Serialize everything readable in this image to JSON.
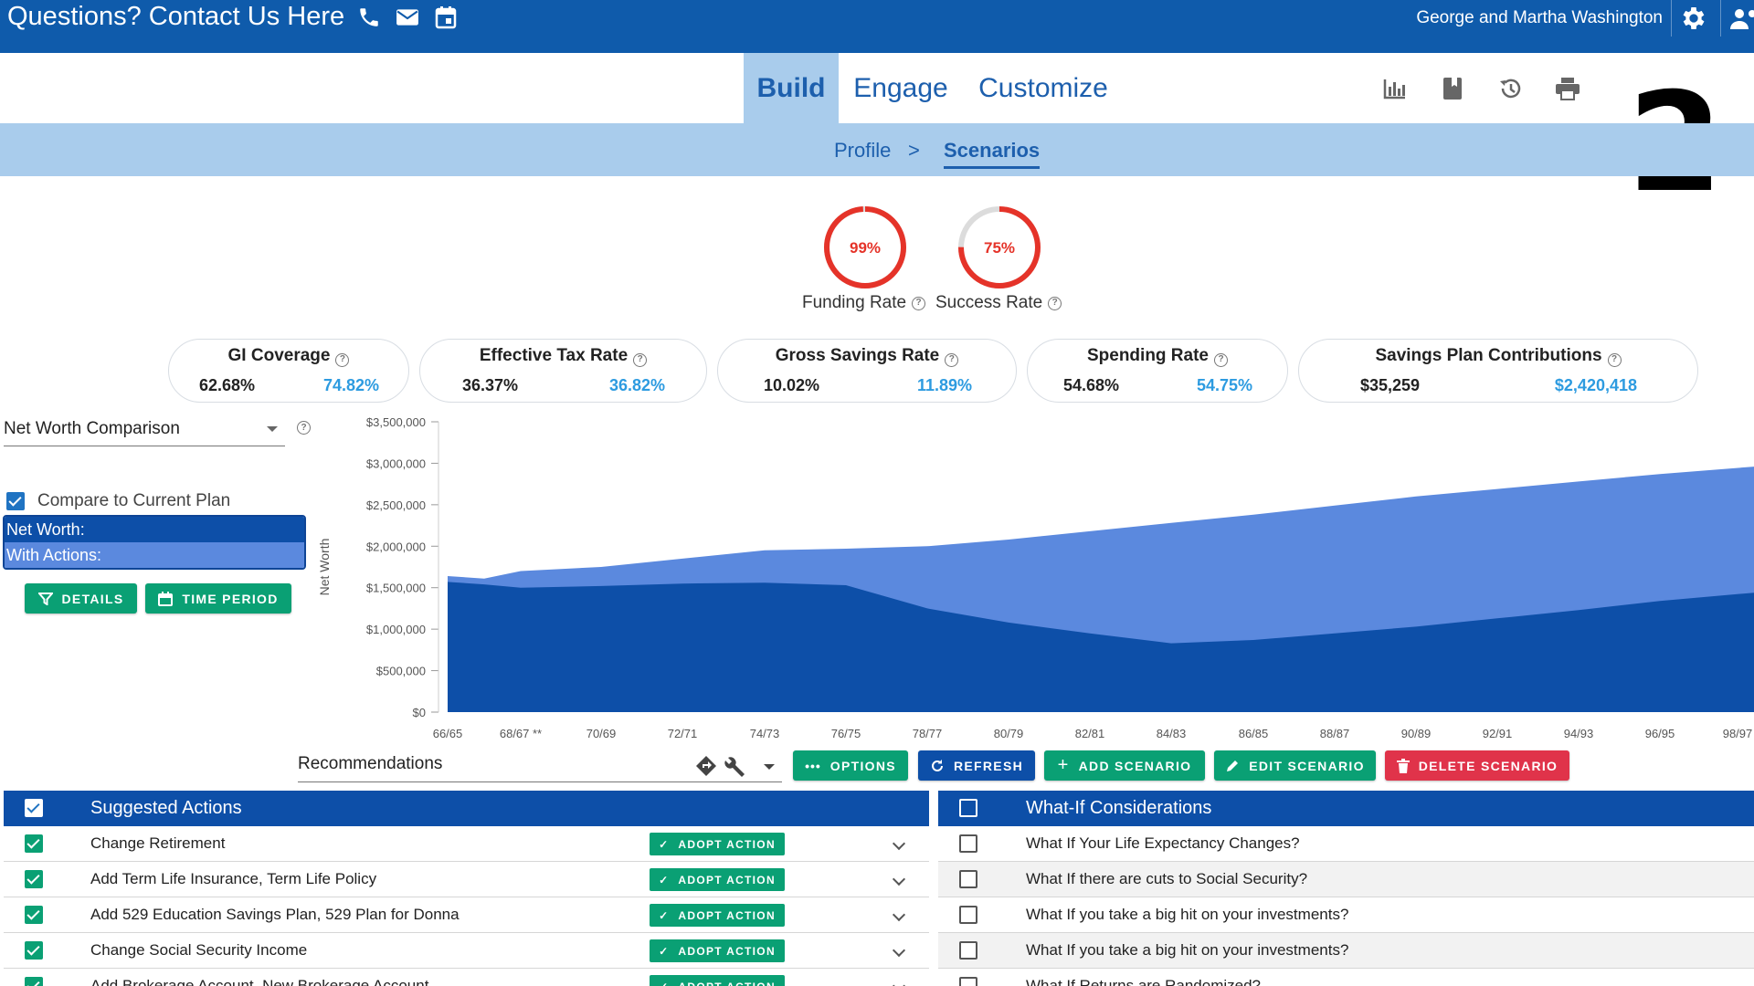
{
  "header": {
    "contact_text": "Questions? Contact Us Here",
    "contact_icons": [
      "phone-icon",
      "mail-icon",
      "calendar-icon"
    ],
    "user_name": "George and Martha Washington",
    "brand_color": "#0f5bab"
  },
  "nav": {
    "tabs": [
      {
        "label": "Build",
        "active": true
      },
      {
        "label": "Engage",
        "active": false
      },
      {
        "label": "Customize",
        "active": false
      }
    ],
    "tool_icons": [
      "bar-chart-icon",
      "book-icon",
      "history-icon",
      "print-icon"
    ]
  },
  "overlay_number": "2",
  "breadcrumb": {
    "items": [
      "Profile",
      "Scenarios"
    ],
    "separator": ">"
  },
  "rates": {
    "funding": {
      "value": "99%",
      "label": "Funding Rate",
      "fraction": 0.99
    },
    "success": {
      "value": "75%",
      "label": "Success Rate",
      "fraction": 0.75
    }
  },
  "metrics": [
    {
      "title": "GI Coverage",
      "current": "62.68%",
      "scenario": "74.82%"
    },
    {
      "title": "Effective Tax Rate",
      "current": "36.37%",
      "scenario": "36.82%"
    },
    {
      "title": "Gross Savings Rate",
      "current": "10.02%",
      "scenario": "11.89%"
    },
    {
      "title": "Spending Rate",
      "current": "54.68%",
      "scenario": "54.75%"
    },
    {
      "title": "Savings Plan Contributions",
      "current": "$35,259",
      "scenario": "$2,420,418"
    }
  ],
  "left_panel": {
    "chart_select": "Net Worth Comparison",
    "compare_label": "Compare to Current Plan",
    "compare_checked": true,
    "legend": [
      "Net Worth:",
      "With Actions:"
    ],
    "details_button": "DETAILS",
    "time_period_button": "TIME PERIOD"
  },
  "chart_data": {
    "type": "area",
    "ylabel": "Net Worth",
    "ylim": [
      0,
      3500000
    ],
    "y_ticks": [
      "$0",
      "$500,000",
      "$1,000,000",
      "$1,500,000",
      "$2,000,000",
      "$2,500,000",
      "$3,000,000",
      "$3,500,000"
    ],
    "x_tick_labels": [
      "66/65",
      "68/67 **",
      "70/69",
      "72/71",
      "74/73",
      "76/75",
      "78/77",
      "80/79",
      "82/81",
      "84/83",
      "86/85",
      "88/87",
      "90/89",
      "92/91",
      "94/93",
      "96/95",
      "98/97"
    ],
    "colors": {
      "net_worth": "#0d4fa8",
      "with_actions": "#5b89de"
    },
    "series": [
      {
        "name": "Net Worth:",
        "x": [
          "66/65",
          "67/66",
          "68/67 **",
          "70/69",
          "72/71",
          "74/73",
          "76/75",
          "78/77",
          "80/79",
          "82/81",
          "84/83",
          "86/85",
          "88/87",
          "90/89",
          "92/91",
          "94/93",
          "96/95",
          "98/97"
        ],
        "values": [
          1570000,
          1540000,
          1500000,
          1520000,
          1550000,
          1560000,
          1530000,
          1250000,
          1080000,
          950000,
          830000,
          870000,
          950000,
          1030000,
          1130000,
          1230000,
          1340000,
          1440000
        ]
      },
      {
        "name": "With Actions:",
        "x": [
          "66/65",
          "67/66",
          "68/67 **",
          "70/69",
          "72/71",
          "74/73",
          "76/75",
          "78/77",
          "80/79",
          "82/81",
          "84/83",
          "86/85",
          "88/87",
          "90/89",
          "92/91",
          "94/93",
          "96/95",
          "98/97"
        ],
        "values": [
          1640000,
          1610000,
          1700000,
          1750000,
          1850000,
          1950000,
          1970000,
          2000000,
          2080000,
          2180000,
          2280000,
          2380000,
          2490000,
          2600000,
          2690000,
          2780000,
          2870000,
          2960000
        ]
      }
    ]
  },
  "recommendations": {
    "select": "Recommendations",
    "buttons": {
      "options": "OPTIONS",
      "refresh": "REFRESH",
      "add": "ADD SCENARIO",
      "edit": "EDIT SCENARIO",
      "delete": "DELETE SCENARIO"
    }
  },
  "suggested": {
    "title": "Suggested Actions",
    "adopt_label": "ADOPT ACTION",
    "items": [
      {
        "label": "Change Retirement",
        "checked": true
      },
      {
        "label": "Add Term Life Insurance, Term Life Policy",
        "checked": true
      },
      {
        "label": "Add 529 Education Savings Plan, 529 Plan for Donna",
        "checked": true
      },
      {
        "label": "Change Social Security Income",
        "checked": true
      },
      {
        "label": "Add Brokerage Account, New Brokerage Account",
        "checked": true
      }
    ]
  },
  "whatif": {
    "title": "What-If Considerations",
    "items": [
      {
        "label": "What If Your Life Expectancy Changes?",
        "checked": false
      },
      {
        "label": "What If there are cuts to Social Security?",
        "checked": false
      },
      {
        "label": "What If you take a big hit on your investments?",
        "checked": false
      },
      {
        "label": "What If you take a big hit on your investments?",
        "checked": false
      },
      {
        "label": "What If Returns are Randomized?",
        "checked": false
      }
    ]
  }
}
